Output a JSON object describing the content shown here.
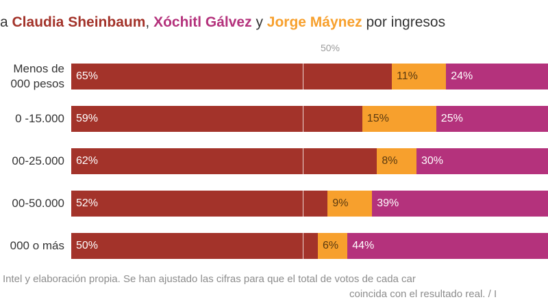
{
  "title": {
    "prefix": "a ",
    "name1": "Claudia Sheinbaum",
    "sep1": ", ",
    "name2": "Xóchitl Gálvez",
    "sep2": " y ",
    "name3": "Jorge Máynez",
    "suffix": " por ingresos"
  },
  "colors": {
    "sheinbaum": "#a3332a",
    "maynez": "#f7a02d",
    "galvez": "#b4327c",
    "title_name1": "#a3332a",
    "title_name2": "#b4327c",
    "title_name3": "#f7a02d"
  },
  "midline_label": "50%",
  "chart_data": {
    "type": "bar",
    "orientation": "horizontal",
    "stacked": true,
    "title": "a Claudia Sheinbaum, Xóchitl Gálvez y Jorge Máynez por ingresos",
    "categories": [
      "Menos de\n000 pesos",
      "0 -15.000",
      "00-25.000",
      "00-50.000",
      "000 o más"
    ],
    "series": [
      {
        "name": "Claudia Sheinbaum",
        "values": [
          65,
          59,
          62,
          52,
          50
        ],
        "labels": [
          "65%",
          "59%",
          "62%",
          "52%",
          "50%"
        ]
      },
      {
        "name": "Jorge Máynez",
        "values": [
          11,
          15,
          8,
          9,
          6
        ],
        "labels": [
          "11%",
          "15%",
          "8%",
          "9%",
          "6%"
        ]
      },
      {
        "name": "Xóchitl Gálvez",
        "values": [
          24,
          25,
          30,
          39,
          44
        ],
        "labels": [
          "24%",
          "25%",
          "30%",
          "39%",
          "44%"
        ]
      }
    ],
    "xlim": [
      0,
      100
    ],
    "reference_line": 50
  },
  "footnote": {
    "line1": "Intel y elaboración propia. Se han ajustado las cifras para que el total de votos de cada car",
    "line2": "coincida con el resultado real. / I"
  }
}
